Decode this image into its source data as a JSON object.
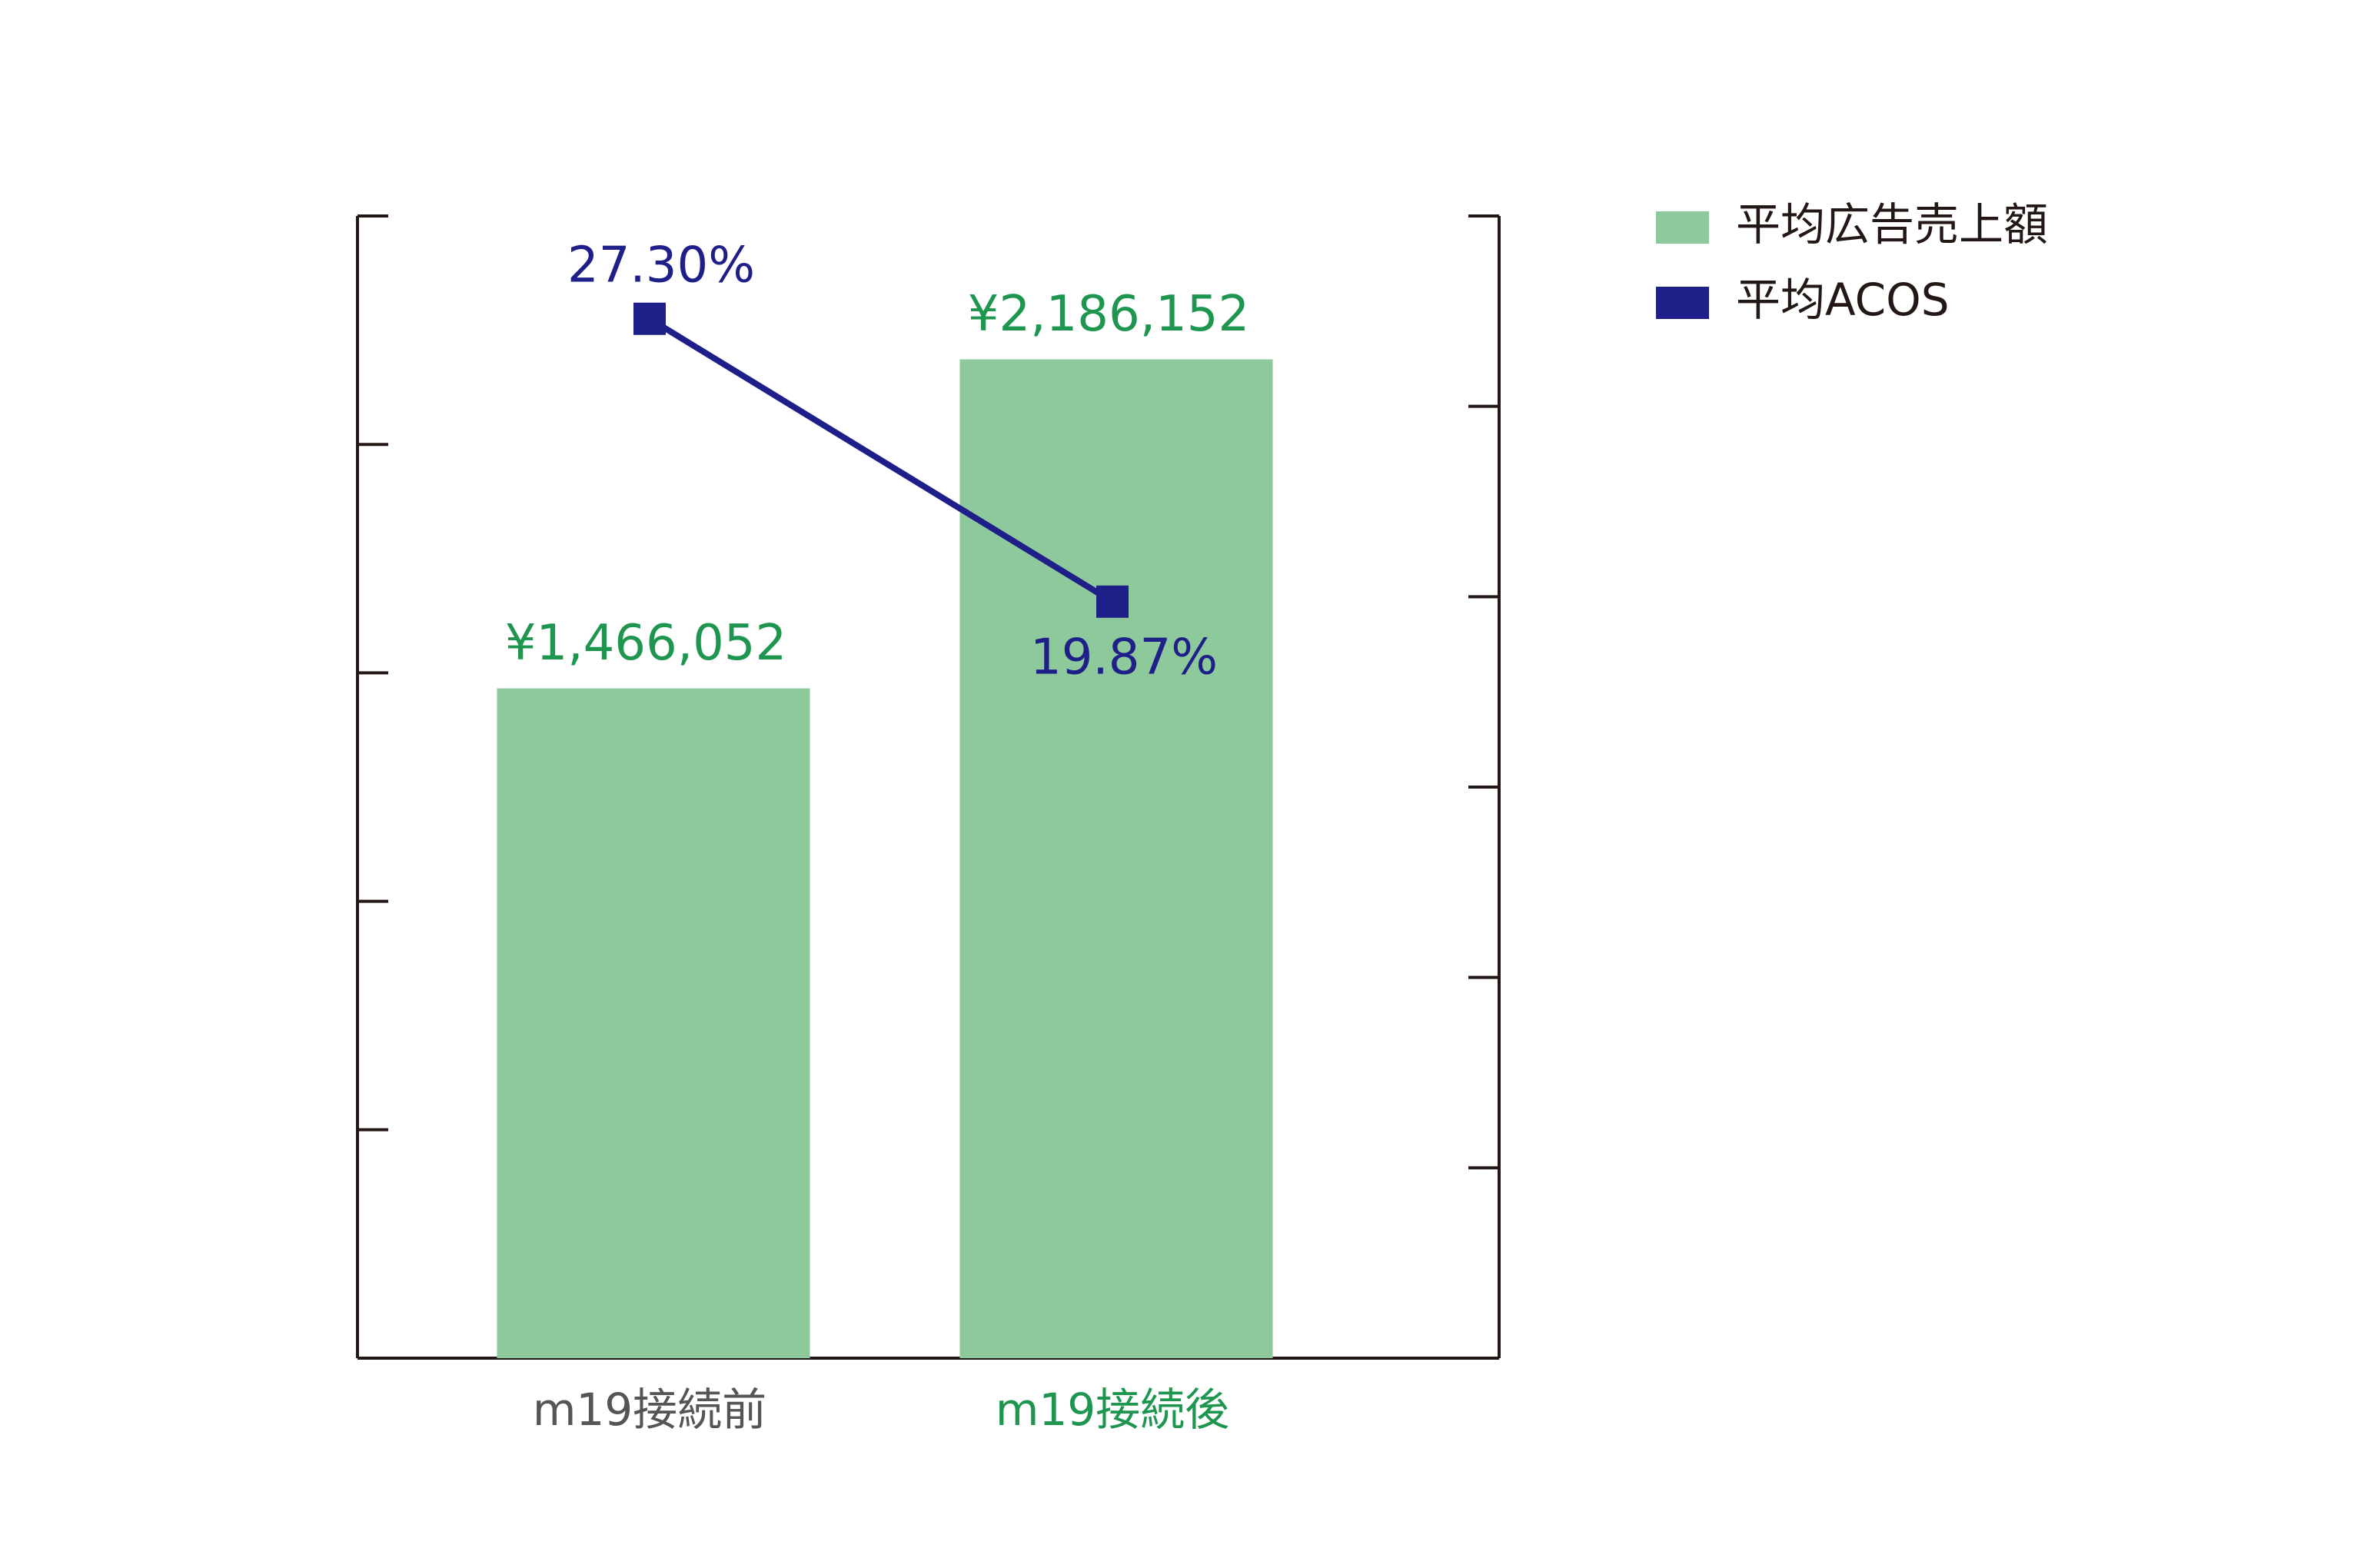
{
  "chart_data": {
    "type": "bar_line",
    "categories": [
      "m19接続前",
      "m19接続後"
    ],
    "category_label_colors": [
      "#555555",
      "#1e9650"
    ],
    "series": [
      {
        "name": "平均広告売上額",
        "type": "bar",
        "color": "#8dc99a",
        "label_color": "#1e9650",
        "values": [
          1466052,
          2186152
        ],
        "value_labels": [
          "¥1,466,052",
          "¥2,186,152"
        ]
      },
      {
        "name": "平均ACOS",
        "type": "line",
        "axis": "y2",
        "color": "#1f1f8a",
        "label_color": "#1f1f8a",
        "values": [
          27.3,
          19.87
        ],
        "value_labels": [
          "27.30%",
          "19.87%"
        ]
      }
    ],
    "ylim": [
      0,
      2500000
    ],
    "yticks": [
      0,
      500000,
      1000000,
      1500000,
      2000000,
      2500000
    ],
    "y2lim": [
      0,
      30
    ],
    "y2ticks": [
      0,
      5,
      10,
      15,
      20,
      25,
      30
    ],
    "legend": "right"
  }
}
